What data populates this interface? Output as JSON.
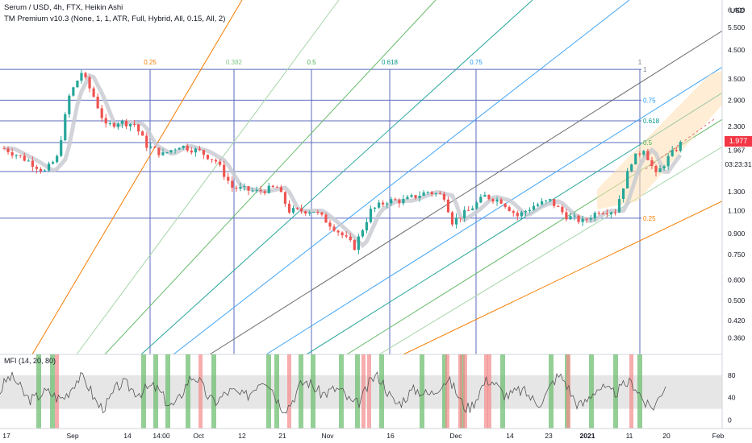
{
  "header": {
    "title": "Serum / USD, 4h, FTX, Heikin Ashi",
    "indicator": "TM Premium v10.3 (None, 1, 1, ATR, Full, Hybrid, All, 0.15, All, 2)",
    "oscillator": "MFI (14, 20, 80)"
  },
  "price_axis": {
    "currency": "USD",
    "last_price_badge": "1.977",
    "prev_price": "1.967",
    "countdown": "03:23:31"
  },
  "colors": {
    "up_candle": "#26a69a",
    "down_candle": "#ef5350",
    "fib_blue": "#5b6bbf",
    "badge_red": "#f23645",
    "mfi_band": "#e0e0e0",
    "mfi_green": "#66bb6a",
    "mfi_red": "#f48a8a"
  },
  "chart_data": [
    {
      "type": "candlestick",
      "title": "Serum / USD, 4h, FTX, Heikin Ashi",
      "y_scale": "log",
      "ylim": [
        0.33,
        6.6
      ],
      "yticks": [
        "6.400",
        "5.500",
        "4.500",
        "3.500",
        "2.900",
        "2.300",
        "1.967",
        "1.300",
        "1.100",
        "0.900",
        "0.750",
        "0.600",
        "0.500",
        "0.420",
        "0.360"
      ],
      "ytick_values": [
        6.4,
        5.5,
        4.5,
        3.5,
        2.9,
        2.3,
        1.967,
        1.3,
        1.1,
        0.9,
        0.75,
        0.6,
        0.5,
        0.42,
        0.36
      ],
      "xticks": [
        "17",
        "Sep",
        "14",
        "14:00",
        "Oct",
        "12",
        "21",
        "Nov",
        "16",
        "Dec",
        "14",
        "23",
        "2021",
        "11",
        "20",
        "Feb"
      ],
      "price_path": [
        {
          "t": 0.0,
          "p": 1.9
        },
        {
          "t": 3.0,
          "p": 1.7
        },
        {
          "t": 5.0,
          "p": 1.55
        },
        {
          "t": 6.5,
          "p": 1.75
        },
        {
          "t": 8.0,
          "p": 3.0
        },
        {
          "t": 9.5,
          "p": 3.7
        },
        {
          "t": 11.0,
          "p": 3.0
        },
        {
          "t": 12.5,
          "p": 2.3
        },
        {
          "t": 14.0,
          "p": 2.4
        },
        {
          "t": 16.0,
          "p": 2.35
        },
        {
          "t": 17.5,
          "p": 1.95
        },
        {
          "t": 19.5,
          "p": 1.8
        },
        {
          "t": 21.5,
          "p": 1.95
        },
        {
          "t": 24.0,
          "p": 1.85
        },
        {
          "t": 26.0,
          "p": 1.7
        },
        {
          "t": 28.0,
          "p": 1.35
        },
        {
          "t": 31.0,
          "p": 1.3
        },
        {
          "t": 33.5,
          "p": 1.35
        },
        {
          "t": 35.0,
          "p": 1.1
        },
        {
          "t": 38.0,
          "p": 1.1
        },
        {
          "t": 40.5,
          "p": 0.95
        },
        {
          "t": 43.0,
          "p": 0.8
        },
        {
          "t": 45.0,
          "p": 1.1
        },
        {
          "t": 47.0,
          "p": 1.2
        },
        {
          "t": 49.0,
          "p": 1.2
        },
        {
          "t": 52.0,
          "p": 1.3
        },
        {
          "t": 54.0,
          "p": 1.25
        },
        {
          "t": 55.0,
          "p": 1.0
        },
        {
          "t": 57.0,
          "p": 1.1
        },
        {
          "t": 59.0,
          "p": 1.25
        },
        {
          "t": 61.0,
          "p": 1.2
        },
        {
          "t": 63.0,
          "p": 1.05
        },
        {
          "t": 65.0,
          "p": 1.15
        },
        {
          "t": 67.0,
          "p": 1.2
        },
        {
          "t": 69.0,
          "p": 1.05
        },
        {
          "t": 71.0,
          "p": 1.0
        },
        {
          "t": 73.0,
          "p": 1.1
        },
        {
          "t": 75.0,
          "p": 1.1
        },
        {
          "t": 77.0,
          "p": 1.7
        },
        {
          "t": 78.5,
          "p": 1.9
        },
        {
          "t": 80.0,
          "p": 1.5
        },
        {
          "t": 81.5,
          "p": 1.75
        },
        {
          "t": 83.0,
          "p": 1.977
        }
      ],
      "fib_levels": [
        {
          "label": "1",
          "price": 3.8
        },
        {
          "label": "0.75",
          "price": 2.9
        },
        {
          "label": "0.618",
          "price": 2.42
        },
        {
          "label": "0.5",
          "price": 2.0
        },
        {
          "label": "0.382",
          "price": 1.55
        },
        {
          "label": "0.25",
          "price": 1.03
        }
      ],
      "fib_time_labels": [
        {
          "label": "0.25",
          "color": "#f57c00"
        },
        {
          "label": "0.382",
          "color": "#81c784"
        },
        {
          "label": "0.5",
          "color": "#4caf50"
        },
        {
          "label": "0.618",
          "color": "#009688"
        },
        {
          "label": "0.75",
          "color": "#2196f3"
        },
        {
          "label": "1",
          "color": "#787b86"
        }
      ],
      "right_labels": [
        {
          "label": "1",
          "price": 3.8,
          "color": "#787b86"
        },
        {
          "label": "0.75",
          "price": 2.9,
          "color": "#2196f3"
        },
        {
          "label": "0.618",
          "price": 2.42,
          "color": "#009688"
        },
        {
          "label": "0.5",
          "price": 2.0,
          "color": "#4caf50"
        },
        {
          "label": "0.25",
          "price": 1.03,
          "color": "#f57c00"
        }
      ]
    },
    {
      "type": "line",
      "title": "MFI (14, 20, 80)",
      "ylim": [
        -5,
        100
      ],
      "yticks": [
        "80",
        "40",
        "0"
      ],
      "ytick_values": [
        80,
        40,
        0
      ],
      "band": [
        20,
        80
      ]
    }
  ]
}
